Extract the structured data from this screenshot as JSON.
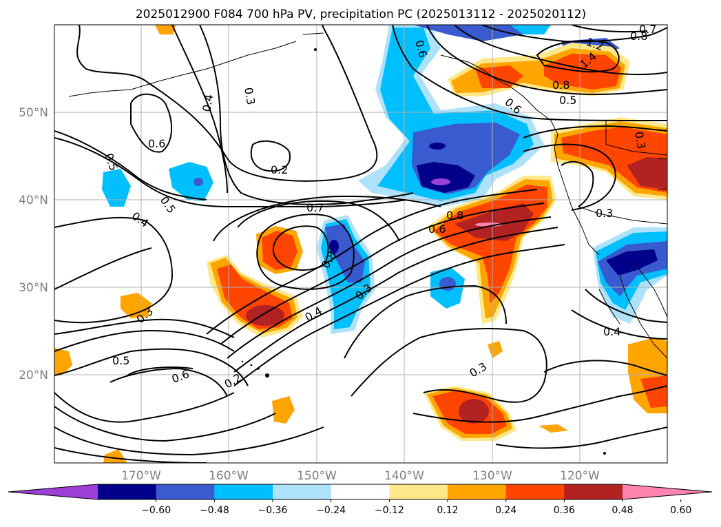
{
  "title": "2025012900 F084 700 hPa PV, precipitation PC (2025013112 - 2025020112)",
  "lat_labels": [
    "50°N",
    "40°N",
    "30°N",
    "20°N"
  ],
  "lon_labels": [
    "170°W",
    "160°W",
    "150°W",
    "140°W",
    "130°W",
    "120°W"
  ],
  "colorbar": {
    "ticks": [
      "−0.60",
      "−0.48",
      "−0.36",
      "−0.24",
      "−0.12",
      "0.12",
      "0.24",
      "0.36",
      "0.48",
      "0.60"
    ],
    "colors": [
      "#9b3fd6",
      "#00008b",
      "#3a5bcf",
      "#00bfff",
      "#aee2fa",
      "#ffffff",
      "#ffe88a",
      "#ffa500",
      "#ff4500",
      "#b22222",
      "#ff85b0"
    ]
  },
  "contour_labels": [
    "0.3",
    "0.4",
    "0.6",
    "0.5",
    "0.5",
    "0.4",
    "0.2",
    "0.7",
    "0.8",
    "0.6",
    "0.8",
    "0.3",
    "0.3",
    "0.4",
    "0.5",
    "0.6",
    "0.2",
    "0.3",
    "0.4",
    "0.3",
    "1.2",
    "1.4",
    "0.8",
    "0.8",
    "0.5",
    "0.6",
    "0.6",
    "0.3",
    "0.7"
  ]
}
